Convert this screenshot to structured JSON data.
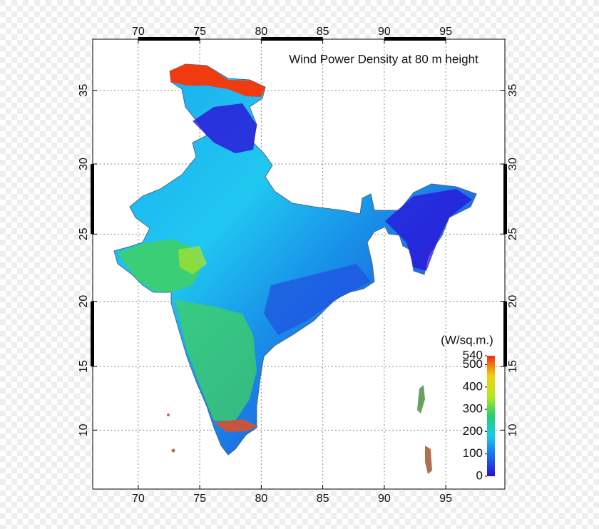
{
  "map": {
    "title": "Wind Power Density at 80 m height",
    "xlim": [
      66.3,
      99.8
    ],
    "ylim": [
      5.3,
      38.3
    ],
    "xticks": [
      70,
      75,
      80,
      85,
      90,
      95
    ],
    "yticks": [
      10,
      15,
      20,
      25,
      30,
      35
    ],
    "grid": true,
    "colorbar": {
      "label": "(W/sq.m.)",
      "lim": [
        0,
        540
      ],
      "ticks": [
        0,
        100,
        200,
        300,
        400,
        500,
        540
      ],
      "colors": [
        "#2a0fd0",
        "#1a6af0",
        "#18c8f0",
        "#22d070",
        "#b8e820",
        "#f0d010",
        "#f03010"
      ]
    }
  }
}
